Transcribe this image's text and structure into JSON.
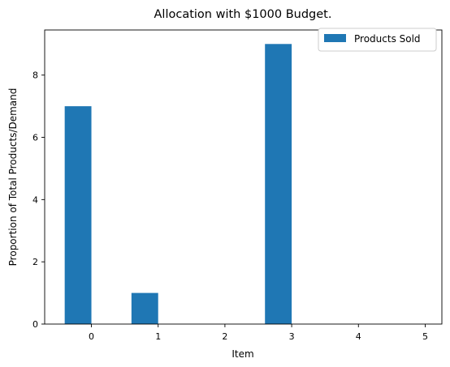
{
  "chart_data": {
    "type": "bar",
    "title": "Allocation with $1000 Budget.",
    "xlabel": "Item",
    "ylabel": "Proportion of Total Products/Demand",
    "categories": [
      0,
      1,
      2,
      3,
      4,
      5
    ],
    "xlim": [
      -0.7,
      5.25
    ],
    "ylim": [
      0,
      9.45
    ],
    "yticks": [
      0,
      2,
      4,
      6,
      8
    ],
    "grid": false,
    "legend_position": "top-right",
    "series": [
      {
        "name": "Products Sold",
        "color": "#1f77b4",
        "x": [
          -0.2,
          0.8,
          1.8,
          2.8,
          3.8,
          4.8
        ],
        "values": [
          7,
          1,
          0,
          9,
          0,
          0
        ],
        "bar_width": 0.4
      }
    ]
  }
}
